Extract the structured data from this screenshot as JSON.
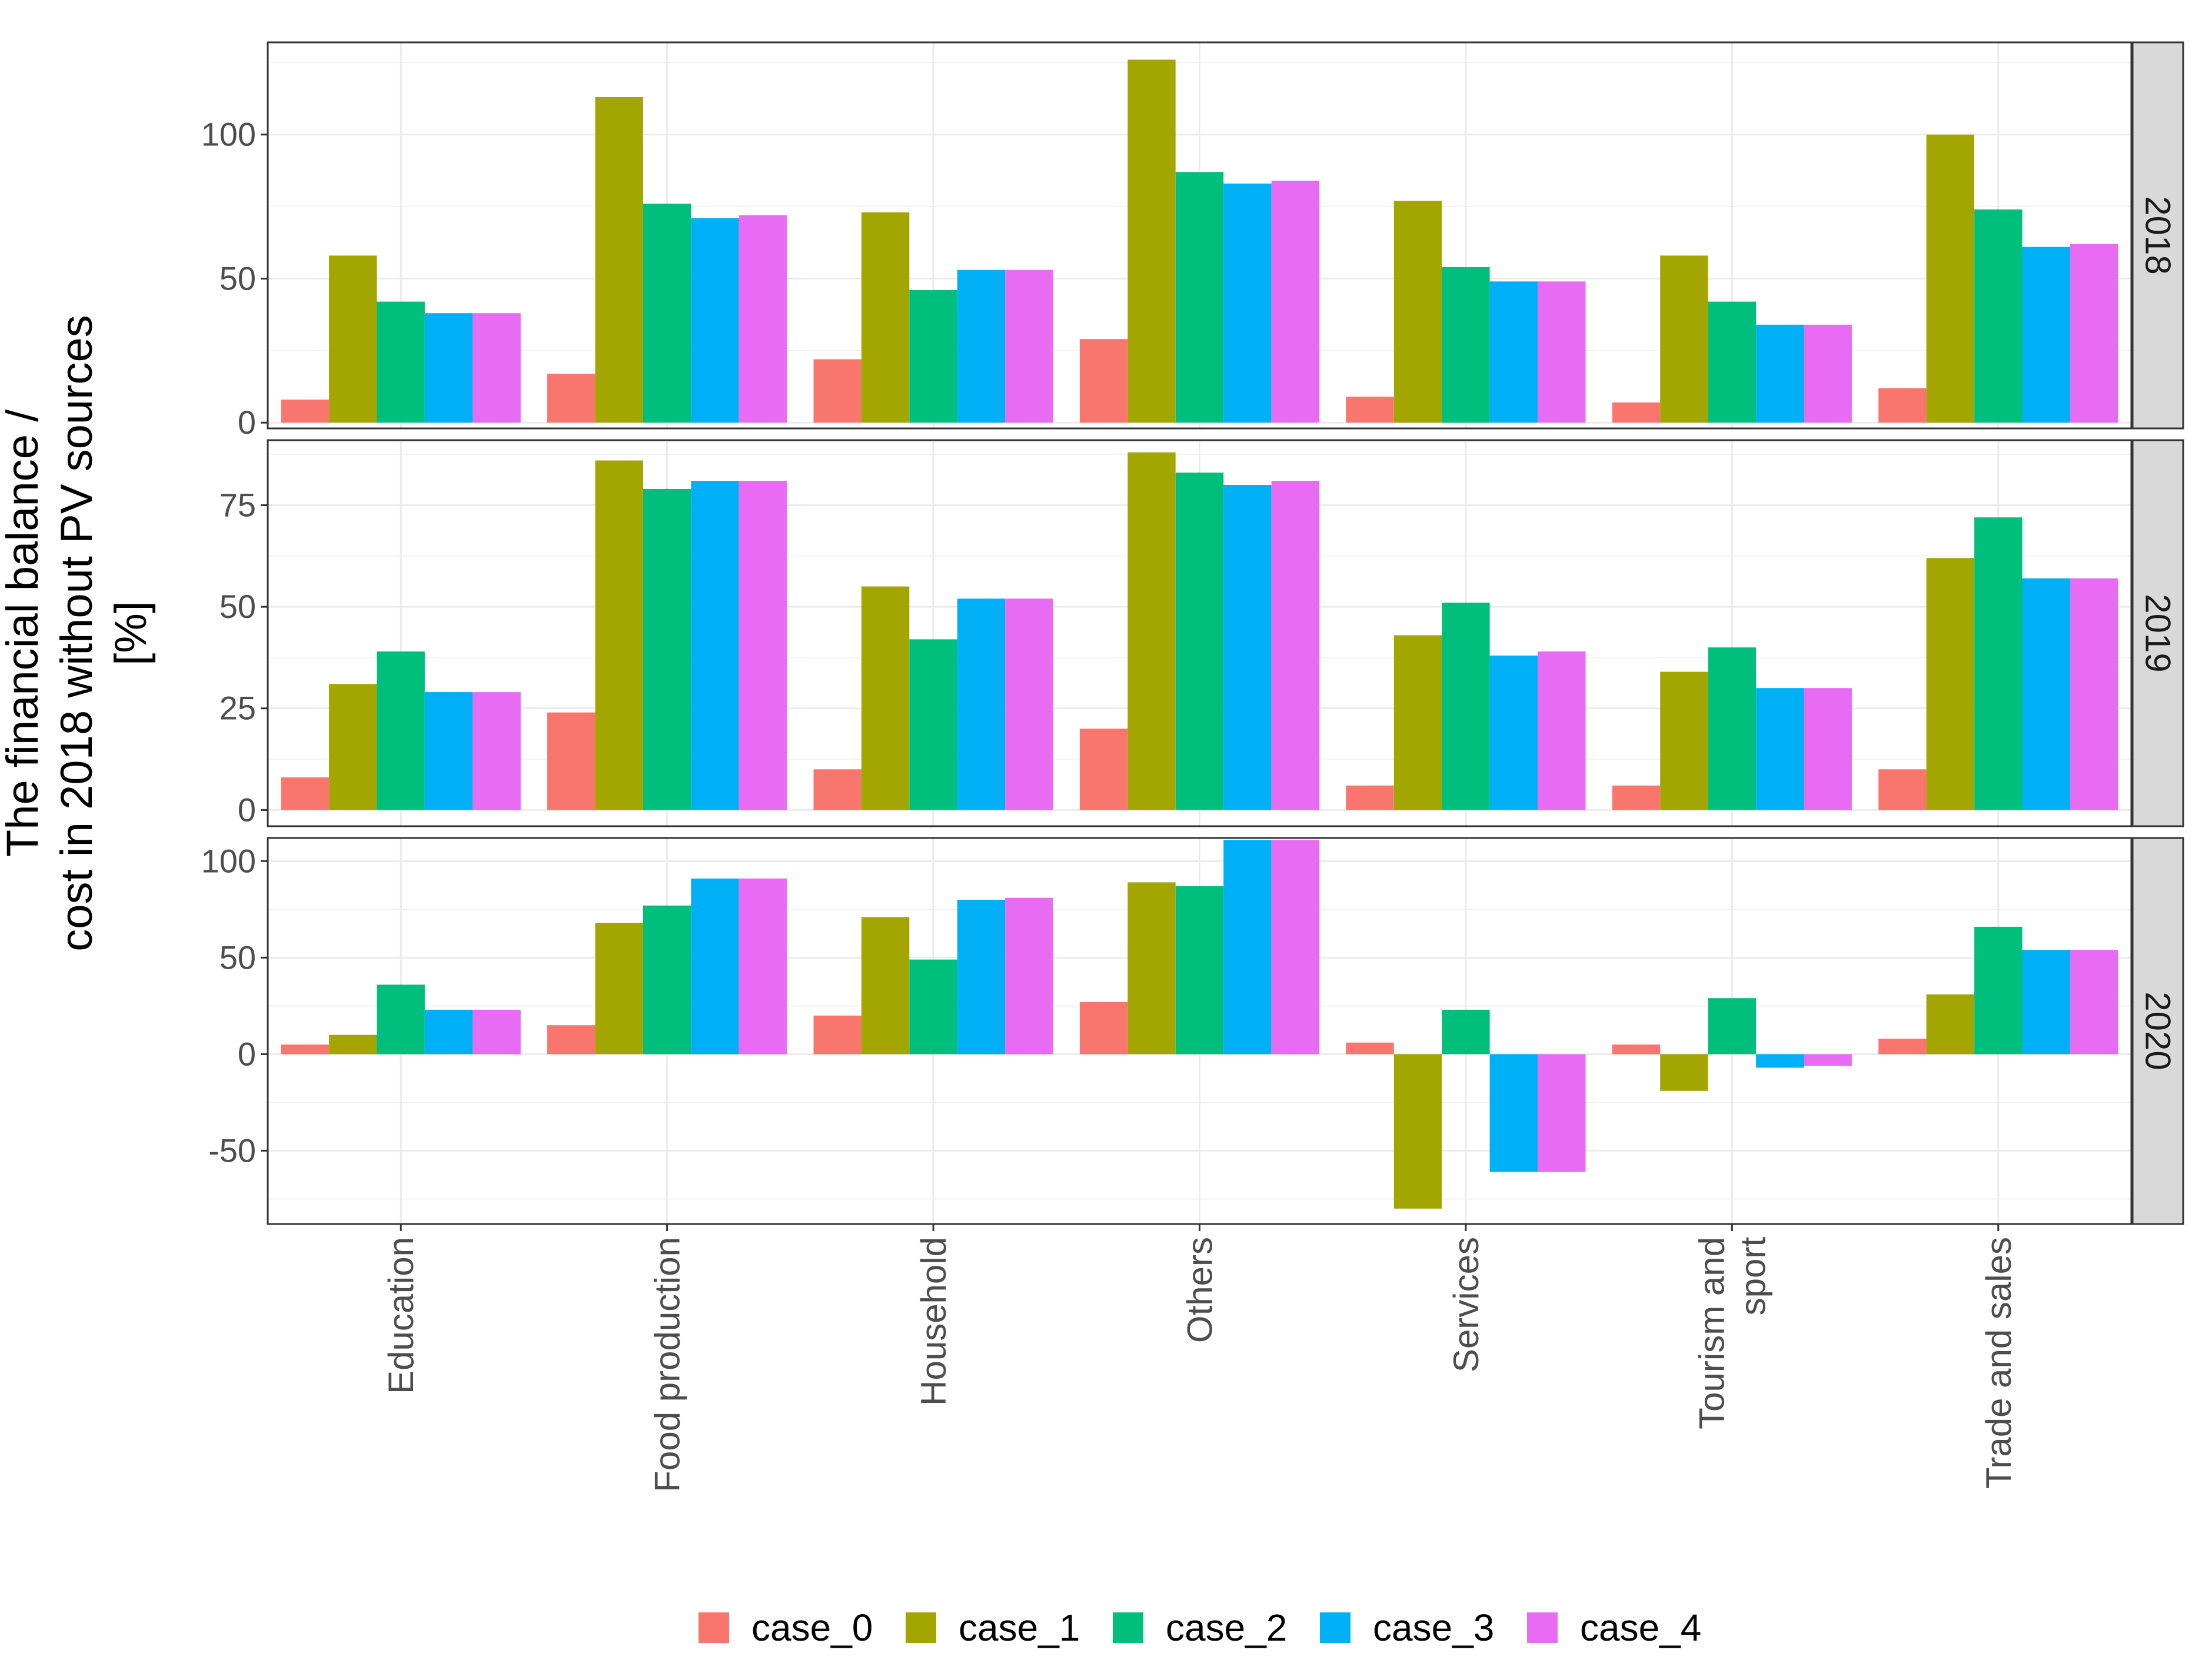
{
  "chart_data": {
    "type": "bar",
    "layout": "faceted-grouped-bar",
    "title": "",
    "xlabel": "",
    "ylabel_lines": [
      "The financial balance /",
      "cost in 2018 without PV sources",
      "[%]"
    ],
    "categories": [
      "Education",
      "Food production",
      "Household",
      "Others",
      "Services",
      "Tourism and sport",
      "Trade and sales"
    ],
    "category_label_lines": [
      [
        "Education"
      ],
      [
        "Food production"
      ],
      [
        "Household"
      ],
      [
        "Others"
      ],
      [
        "Services"
      ],
      [
        "Tourism and",
        "sport"
      ],
      [
        "Trade and sales"
      ]
    ],
    "legend_position": "bottom",
    "grid": true,
    "series_names": [
      "case_0",
      "case_1",
      "case_2",
      "case_3",
      "case_4"
    ],
    "series_colors": [
      "#F8766D",
      "#A3A500",
      "#00BF7D",
      "#00B0F6",
      "#E76BF3"
    ],
    "panels": [
      {
        "label": "2018",
        "ylim": [
          -2,
          132
        ],
        "yticks": [
          0,
          50,
          100
        ],
        "tick_labels": [
          "0",
          "50",
          "100"
        ],
        "series": [
          {
            "name": "case_0",
            "values": [
              8,
              17,
              22,
              29,
              9,
              7,
              12
            ]
          },
          {
            "name": "case_1",
            "values": [
              58,
              113,
              73,
              126,
              77,
              58,
              100
            ]
          },
          {
            "name": "case_2",
            "values": [
              42,
              76,
              46,
              87,
              54,
              42,
              74
            ]
          },
          {
            "name": "case_3",
            "values": [
              38,
              71,
              53,
              83,
              49,
              34,
              61
            ]
          },
          {
            "name": "case_4",
            "values": [
              38,
              72,
              53,
              84,
              49,
              34,
              62
            ]
          }
        ]
      },
      {
        "label": "2019",
        "ylim": [
          -4,
          91
        ],
        "yticks": [
          0,
          25,
          50,
          75
        ],
        "tick_labels": [
          "0",
          "25",
          "50",
          "75"
        ],
        "series": [
          {
            "name": "case_0",
            "values": [
              8,
              24,
              10,
              20,
              6,
              6,
              10
            ]
          },
          {
            "name": "case_1",
            "values": [
              31,
              86,
              55,
              88,
              43,
              34,
              62
            ]
          },
          {
            "name": "case_2",
            "values": [
              39,
              79,
              42,
              83,
              51,
              40,
              72
            ]
          },
          {
            "name": "case_3",
            "values": [
              29,
              81,
              52,
              80,
              38,
              30,
              57
            ]
          },
          {
            "name": "case_4",
            "values": [
              29,
              81,
              52,
              81,
              39,
              30,
              57
            ]
          }
        ]
      },
      {
        "label": "2020",
        "ylim": [
          -88,
          112
        ],
        "yticks": [
          -50,
          0,
          50,
          100
        ],
        "tick_labels": [
          "-50",
          "0",
          "50",
          "100"
        ],
        "series": [
          {
            "name": "case_0",
            "values": [
              5,
              15,
              20,
              27,
              6,
              5,
              8
            ]
          },
          {
            "name": "case_1",
            "values": [
              10,
              68,
              71,
              89,
              -80,
              -19,
              31
            ]
          },
          {
            "name": "case_2",
            "values": [
              36,
              77,
              49,
              87,
              23,
              29,
              66
            ]
          },
          {
            "name": "case_3",
            "values": [
              23,
              91,
              80,
              111,
              -61,
              -7,
              54
            ]
          },
          {
            "name": "case_4",
            "values": [
              23,
              91,
              81,
              111,
              -61,
              -6,
              54
            ]
          }
        ]
      }
    ]
  }
}
